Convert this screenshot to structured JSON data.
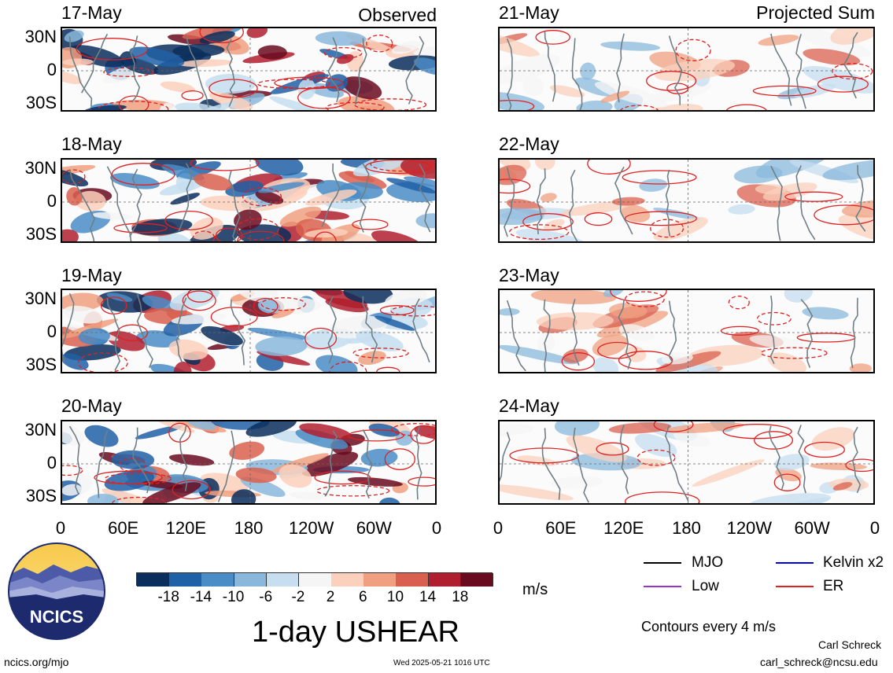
{
  "panels": {
    "left": {
      "header": "Observed",
      "dates": [
        "17-May",
        "18-May",
        "19-May",
        "20-May"
      ]
    },
    "right": {
      "header": "Projected Sum",
      "dates": [
        "21-May",
        "22-May",
        "23-May",
        "24-May"
      ]
    }
  },
  "lat_ticks": [
    "30N",
    "0",
    "30S"
  ],
  "lon_ticks": [
    "0",
    "60E",
    "120E",
    "180",
    "120W",
    "60W",
    "0"
  ],
  "colorbar": {
    "unit": "m/s",
    "tick_labels": [
      "-18",
      "-14",
      "-10",
      "-6",
      "-2",
      "2",
      "6",
      "10",
      "14",
      "18"
    ],
    "colors": [
      "#0b2e5c",
      "#2060a6",
      "#4a8cc6",
      "#8ab8dc",
      "#c6def0",
      "#f5f5f5",
      "#fbd0bc",
      "#f0a080",
      "#d9604e",
      "#b01f2e",
      "#6a0a1f"
    ]
  },
  "title": "1-day USHEAR",
  "legend": {
    "items": [
      {
        "label": "MJO",
        "color": "#000000"
      },
      {
        "label": "Kelvin x2",
        "color": "#0000e0"
      },
      {
        "label": "Low",
        "color": "#9933cc"
      },
      {
        "label": "ER",
        "color": "#e02020"
      }
    ],
    "note": "Contours every 4 m/s"
  },
  "logo_text": "NCICS",
  "footer": {
    "url": "ncics.org/mjo",
    "timestamp": "Wed 2025-05-21 1016 UTC",
    "author": "Carl Schreck",
    "email": "carl_schreck@ncsu.edu"
  },
  "chart_data": [
    {
      "type": "heatmap",
      "title": "17-May",
      "subtitle": "Observed",
      "x": [
        "0",
        "60E",
        "120E",
        "180",
        "120W",
        "60W",
        "0"
      ],
      "y": [
        "30N",
        "0",
        "30S"
      ],
      "colorscale_unit": "m/s"
    },
    {
      "type": "heatmap",
      "title": "18-May",
      "x": [
        "0",
        "60E",
        "120E",
        "180",
        "120W",
        "60W",
        "0"
      ],
      "y": [
        "30N",
        "0",
        "30S"
      ],
      "colorscale_unit": "m/s"
    },
    {
      "type": "heatmap",
      "title": "19-May",
      "x": [
        "0",
        "60E",
        "120E",
        "180",
        "120W",
        "60W",
        "0"
      ],
      "y": [
        "30N",
        "0",
        "30S"
      ],
      "colorscale_unit": "m/s"
    },
    {
      "type": "heatmap",
      "title": "20-May",
      "x": [
        "0",
        "60E",
        "120E",
        "180",
        "120W",
        "60W",
        "0"
      ],
      "y": [
        "30N",
        "0",
        "30S"
      ],
      "colorscale_unit": "m/s"
    },
    {
      "type": "heatmap",
      "title": "21-May",
      "subtitle": "Projected Sum",
      "x": [
        "0",
        "60E",
        "120E",
        "180",
        "120W",
        "60W",
        "0"
      ],
      "y": [
        "30N",
        "0",
        "30S"
      ],
      "colorscale_unit": "m/s"
    },
    {
      "type": "heatmap",
      "title": "22-May",
      "x": [
        "0",
        "60E",
        "120E",
        "180",
        "120W",
        "60W",
        "0"
      ],
      "y": [
        "30N",
        "0",
        "30S"
      ],
      "colorscale_unit": "m/s"
    },
    {
      "type": "heatmap",
      "title": "23-May",
      "x": [
        "0",
        "60E",
        "120E",
        "180",
        "120W",
        "60W",
        "0"
      ],
      "y": [
        "30N",
        "0",
        "30S"
      ],
      "colorscale_unit": "m/s"
    },
    {
      "type": "heatmap",
      "title": "24-May",
      "x": [
        "0",
        "60E",
        "120E",
        "180",
        "120W",
        "60W",
        "0"
      ],
      "y": [
        "30N",
        "0",
        "30S"
      ],
      "colorscale_unit": "m/s"
    }
  ]
}
